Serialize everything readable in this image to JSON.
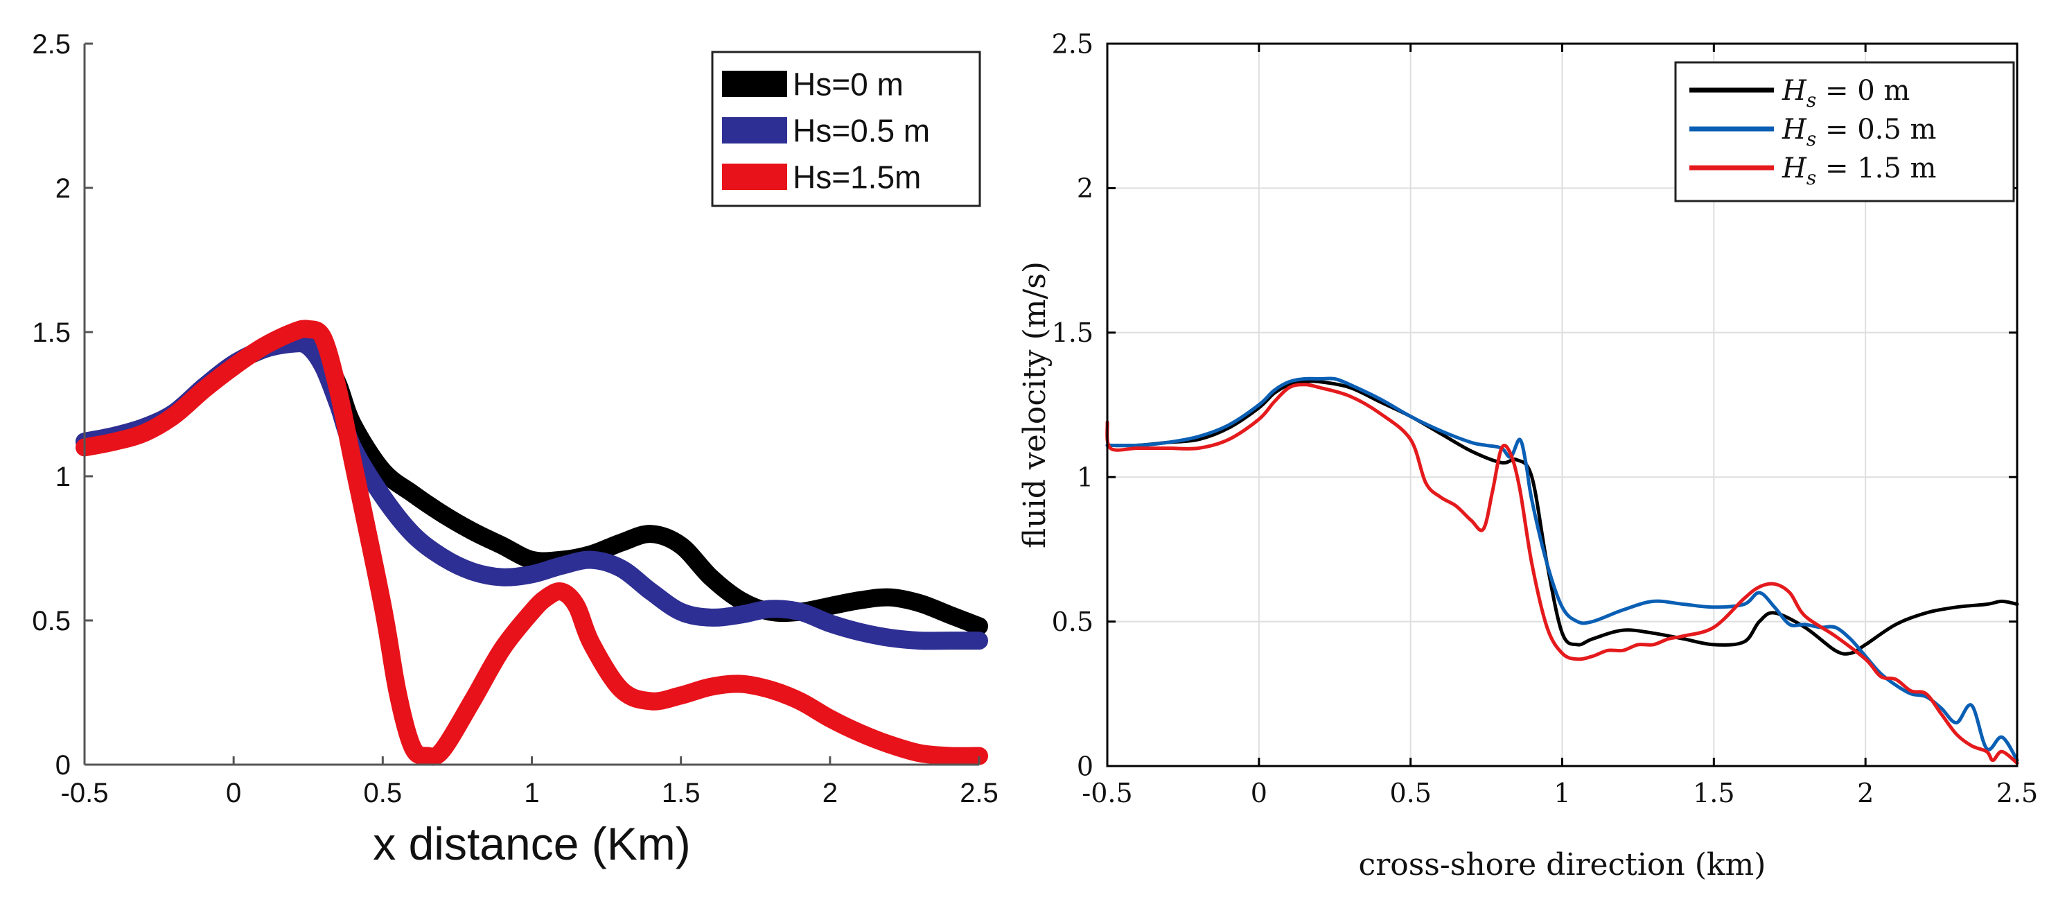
{
  "chart_data": [
    {
      "type": "line",
      "title": "",
      "xlabel": "x distance (Km)",
      "ylabel": "",
      "xlim": [
        -0.5,
        2.5
      ],
      "ylim": [
        0,
        2.5
      ],
      "xticks": [
        "-0.5",
        "0",
        "0.5",
        "1",
        "1.5",
        "2",
        "2.5"
      ],
      "yticks": [
        "0",
        "0.5",
        "1",
        "1.5",
        "2",
        "2.5"
      ],
      "grid": false,
      "legend_position": "top-right",
      "series": [
        {
          "name": "Hs=0 m",
          "color": "#000000",
          "x": [
            -0.5,
            -0.4,
            -0.3,
            -0.2,
            -0.1,
            0,
            0.1,
            0.2,
            0.25,
            0.3,
            0.35,
            0.4,
            0.5,
            0.6,
            0.7,
            0.8,
            0.9,
            1.0,
            1.1,
            1.2,
            1.3,
            1.4,
            1.5,
            1.6,
            1.7,
            1.8,
            1.9,
            2.0,
            2.1,
            2.2,
            2.3,
            2.4,
            2.5
          ],
          "y": [
            1.12,
            1.14,
            1.17,
            1.22,
            1.31,
            1.39,
            1.44,
            1.47,
            1.47,
            1.42,
            1.32,
            1.18,
            1.02,
            0.94,
            0.87,
            0.81,
            0.76,
            0.71,
            0.71,
            0.73,
            0.77,
            0.8,
            0.76,
            0.65,
            0.57,
            0.53,
            0.53,
            0.55,
            0.57,
            0.58,
            0.56,
            0.52,
            0.48
          ]
        },
        {
          "name": "Hs=0.5 m",
          "color": "#2e2f94",
          "x": [
            -0.5,
            -0.4,
            -0.3,
            -0.2,
            -0.1,
            0,
            0.1,
            0.2,
            0.25,
            0.3,
            0.35,
            0.4,
            0.5,
            0.6,
            0.7,
            0.8,
            0.9,
            1.0,
            1.1,
            1.2,
            1.3,
            1.4,
            1.5,
            1.6,
            1.7,
            1.8,
            1.9,
            2.0,
            2.1,
            2.2,
            2.3,
            2.4,
            2.5
          ],
          "y": [
            1.12,
            1.14,
            1.17,
            1.22,
            1.31,
            1.39,
            1.44,
            1.46,
            1.45,
            1.38,
            1.25,
            1.1,
            0.93,
            0.8,
            0.72,
            0.67,
            0.65,
            0.66,
            0.69,
            0.71,
            0.68,
            0.6,
            0.53,
            0.51,
            0.52,
            0.54,
            0.53,
            0.49,
            0.46,
            0.44,
            0.43,
            0.43,
            0.43
          ]
        },
        {
          "name": "Hs=1.5m",
          "color": "#e8121a",
          "x": [
            -0.5,
            -0.4,
            -0.3,
            -0.2,
            -0.1,
            0,
            0.1,
            0.2,
            0.25,
            0.3,
            0.35,
            0.4,
            0.5,
            0.55,
            0.6,
            0.65,
            0.7,
            0.8,
            0.9,
            1.0,
            1.05,
            1.1,
            1.15,
            1.2,
            1.3,
            1.4,
            1.5,
            1.6,
            1.7,
            1.8,
            1.9,
            2.0,
            2.1,
            2.2,
            2.3,
            2.4,
            2.5
          ],
          "y": [
            1.1,
            1.12,
            1.15,
            1.21,
            1.3,
            1.38,
            1.45,
            1.5,
            1.51,
            1.48,
            1.3,
            1.05,
            0.55,
            0.25,
            0.06,
            0.03,
            0.05,
            0.22,
            0.4,
            0.53,
            0.58,
            0.6,
            0.55,
            0.42,
            0.26,
            0.22,
            0.24,
            0.27,
            0.28,
            0.26,
            0.22,
            0.16,
            0.11,
            0.07,
            0.04,
            0.03,
            0.03
          ]
        }
      ]
    },
    {
      "type": "line",
      "title": "",
      "xlabel": "cross-shore direction (km)",
      "ylabel": "fluid velocity (m/s)",
      "xlim": [
        -0.5,
        2.5
      ],
      "ylim": [
        0,
        2.5
      ],
      "xticks": [
        "-0.5",
        "0",
        "0.5",
        "1",
        "1.5",
        "2",
        "2.5"
      ],
      "yticks": [
        "0",
        "0.5",
        "1",
        "1.5",
        "2",
        "2.5"
      ],
      "grid": true,
      "legend_position": "top-right",
      "series": [
        {
          "name": "H_s = 0 m",
          "label": {
            "main": "H",
            "sub": "s",
            "rest": " = 0 m"
          },
          "color": "#000000",
          "x": [
            -0.5,
            -0.4,
            -0.3,
            -0.2,
            -0.1,
            0,
            0.05,
            0.1,
            0.15,
            0.2,
            0.3,
            0.4,
            0.5,
            0.6,
            0.7,
            0.8,
            0.85,
            0.9,
            0.95,
            1.0,
            1.05,
            1.1,
            1.2,
            1.3,
            1.4,
            1.5,
            1.6,
            1.65,
            1.7,
            1.8,
            1.9,
            1.95,
            2.0,
            2.1,
            2.2,
            2.3,
            2.4,
            2.45,
            2.5
          ],
          "y": [
            1.11,
            1.11,
            1.12,
            1.13,
            1.17,
            1.24,
            1.29,
            1.32,
            1.33,
            1.33,
            1.31,
            1.26,
            1.21,
            1.15,
            1.09,
            1.05,
            1.06,
            1.0,
            0.7,
            0.46,
            0.42,
            0.44,
            0.47,
            0.46,
            0.44,
            0.42,
            0.43,
            0.5,
            0.53,
            0.48,
            0.4,
            0.39,
            0.42,
            0.49,
            0.53,
            0.55,
            0.56,
            0.57,
            0.56
          ]
        },
        {
          "name": "H_s = 0.5 m",
          "label": {
            "main": "H",
            "sub": "s",
            "rest": " = 0.5 m"
          },
          "color": "#0a5fb4",
          "x": [
            -0.5,
            -0.4,
            -0.3,
            -0.2,
            -0.1,
            0,
            0.05,
            0.1,
            0.15,
            0.2,
            0.25,
            0.3,
            0.4,
            0.5,
            0.6,
            0.7,
            0.75,
            0.8,
            0.83,
            0.86,
            0.88,
            0.9,
            0.95,
            1.0,
            1.05,
            1.1,
            1.2,
            1.3,
            1.4,
            1.5,
            1.6,
            1.65,
            1.7,
            1.75,
            1.8,
            1.85,
            1.9,
            1.95,
            2.0,
            2.05,
            2.1,
            2.15,
            2.2,
            2.25,
            2.3,
            2.35,
            2.4,
            2.45,
            2.5
          ],
          "y": [
            1.11,
            1.11,
            1.12,
            1.14,
            1.18,
            1.25,
            1.3,
            1.33,
            1.34,
            1.34,
            1.34,
            1.32,
            1.27,
            1.21,
            1.16,
            1.12,
            1.11,
            1.1,
            1.07,
            1.13,
            1.05,
            0.92,
            0.7,
            0.55,
            0.5,
            0.5,
            0.54,
            0.57,
            0.56,
            0.55,
            0.56,
            0.6,
            0.55,
            0.49,
            0.49,
            0.48,
            0.48,
            0.44,
            0.38,
            0.32,
            0.28,
            0.25,
            0.24,
            0.2,
            0.15,
            0.21,
            0.06,
            0.1,
            0.02
          ]
        },
        {
          "name": "H_s = 1.5 m",
          "label": {
            "main": "H",
            "sub": "s",
            "rest": " = 1.5 m"
          },
          "color": "#e41a1c",
          "x": [
            -0.5,
            -0.49,
            -0.4,
            -0.3,
            -0.2,
            -0.1,
            0,
            0.05,
            0.1,
            0.15,
            0.2,
            0.3,
            0.4,
            0.5,
            0.55,
            0.6,
            0.65,
            0.7,
            0.74,
            0.77,
            0.8,
            0.83,
            0.86,
            0.9,
            0.95,
            1.0,
            1.05,
            1.1,
            1.15,
            1.2,
            1.25,
            1.3,
            1.35,
            1.4,
            1.5,
            1.6,
            1.65,
            1.7,
            1.75,
            1.8,
            1.9,
            2.0,
            2.05,
            2.1,
            2.15,
            2.2,
            2.25,
            2.3,
            2.35,
            2.4,
            2.42,
            2.45,
            2.5
          ],
          "y": [
            1.19,
            1.1,
            1.1,
            1.1,
            1.1,
            1.13,
            1.2,
            1.26,
            1.31,
            1.32,
            1.31,
            1.28,
            1.22,
            1.13,
            0.98,
            0.93,
            0.9,
            0.85,
            0.82,
            0.95,
            1.1,
            1.08,
            0.96,
            0.7,
            0.48,
            0.39,
            0.37,
            0.38,
            0.4,
            0.4,
            0.42,
            0.42,
            0.44,
            0.45,
            0.48,
            0.58,
            0.62,
            0.63,
            0.6,
            0.52,
            0.45,
            0.37,
            0.31,
            0.3,
            0.26,
            0.25,
            0.18,
            0.11,
            0.07,
            0.05,
            0.02,
            0.05,
            0.01
          ]
        }
      ]
    }
  ]
}
